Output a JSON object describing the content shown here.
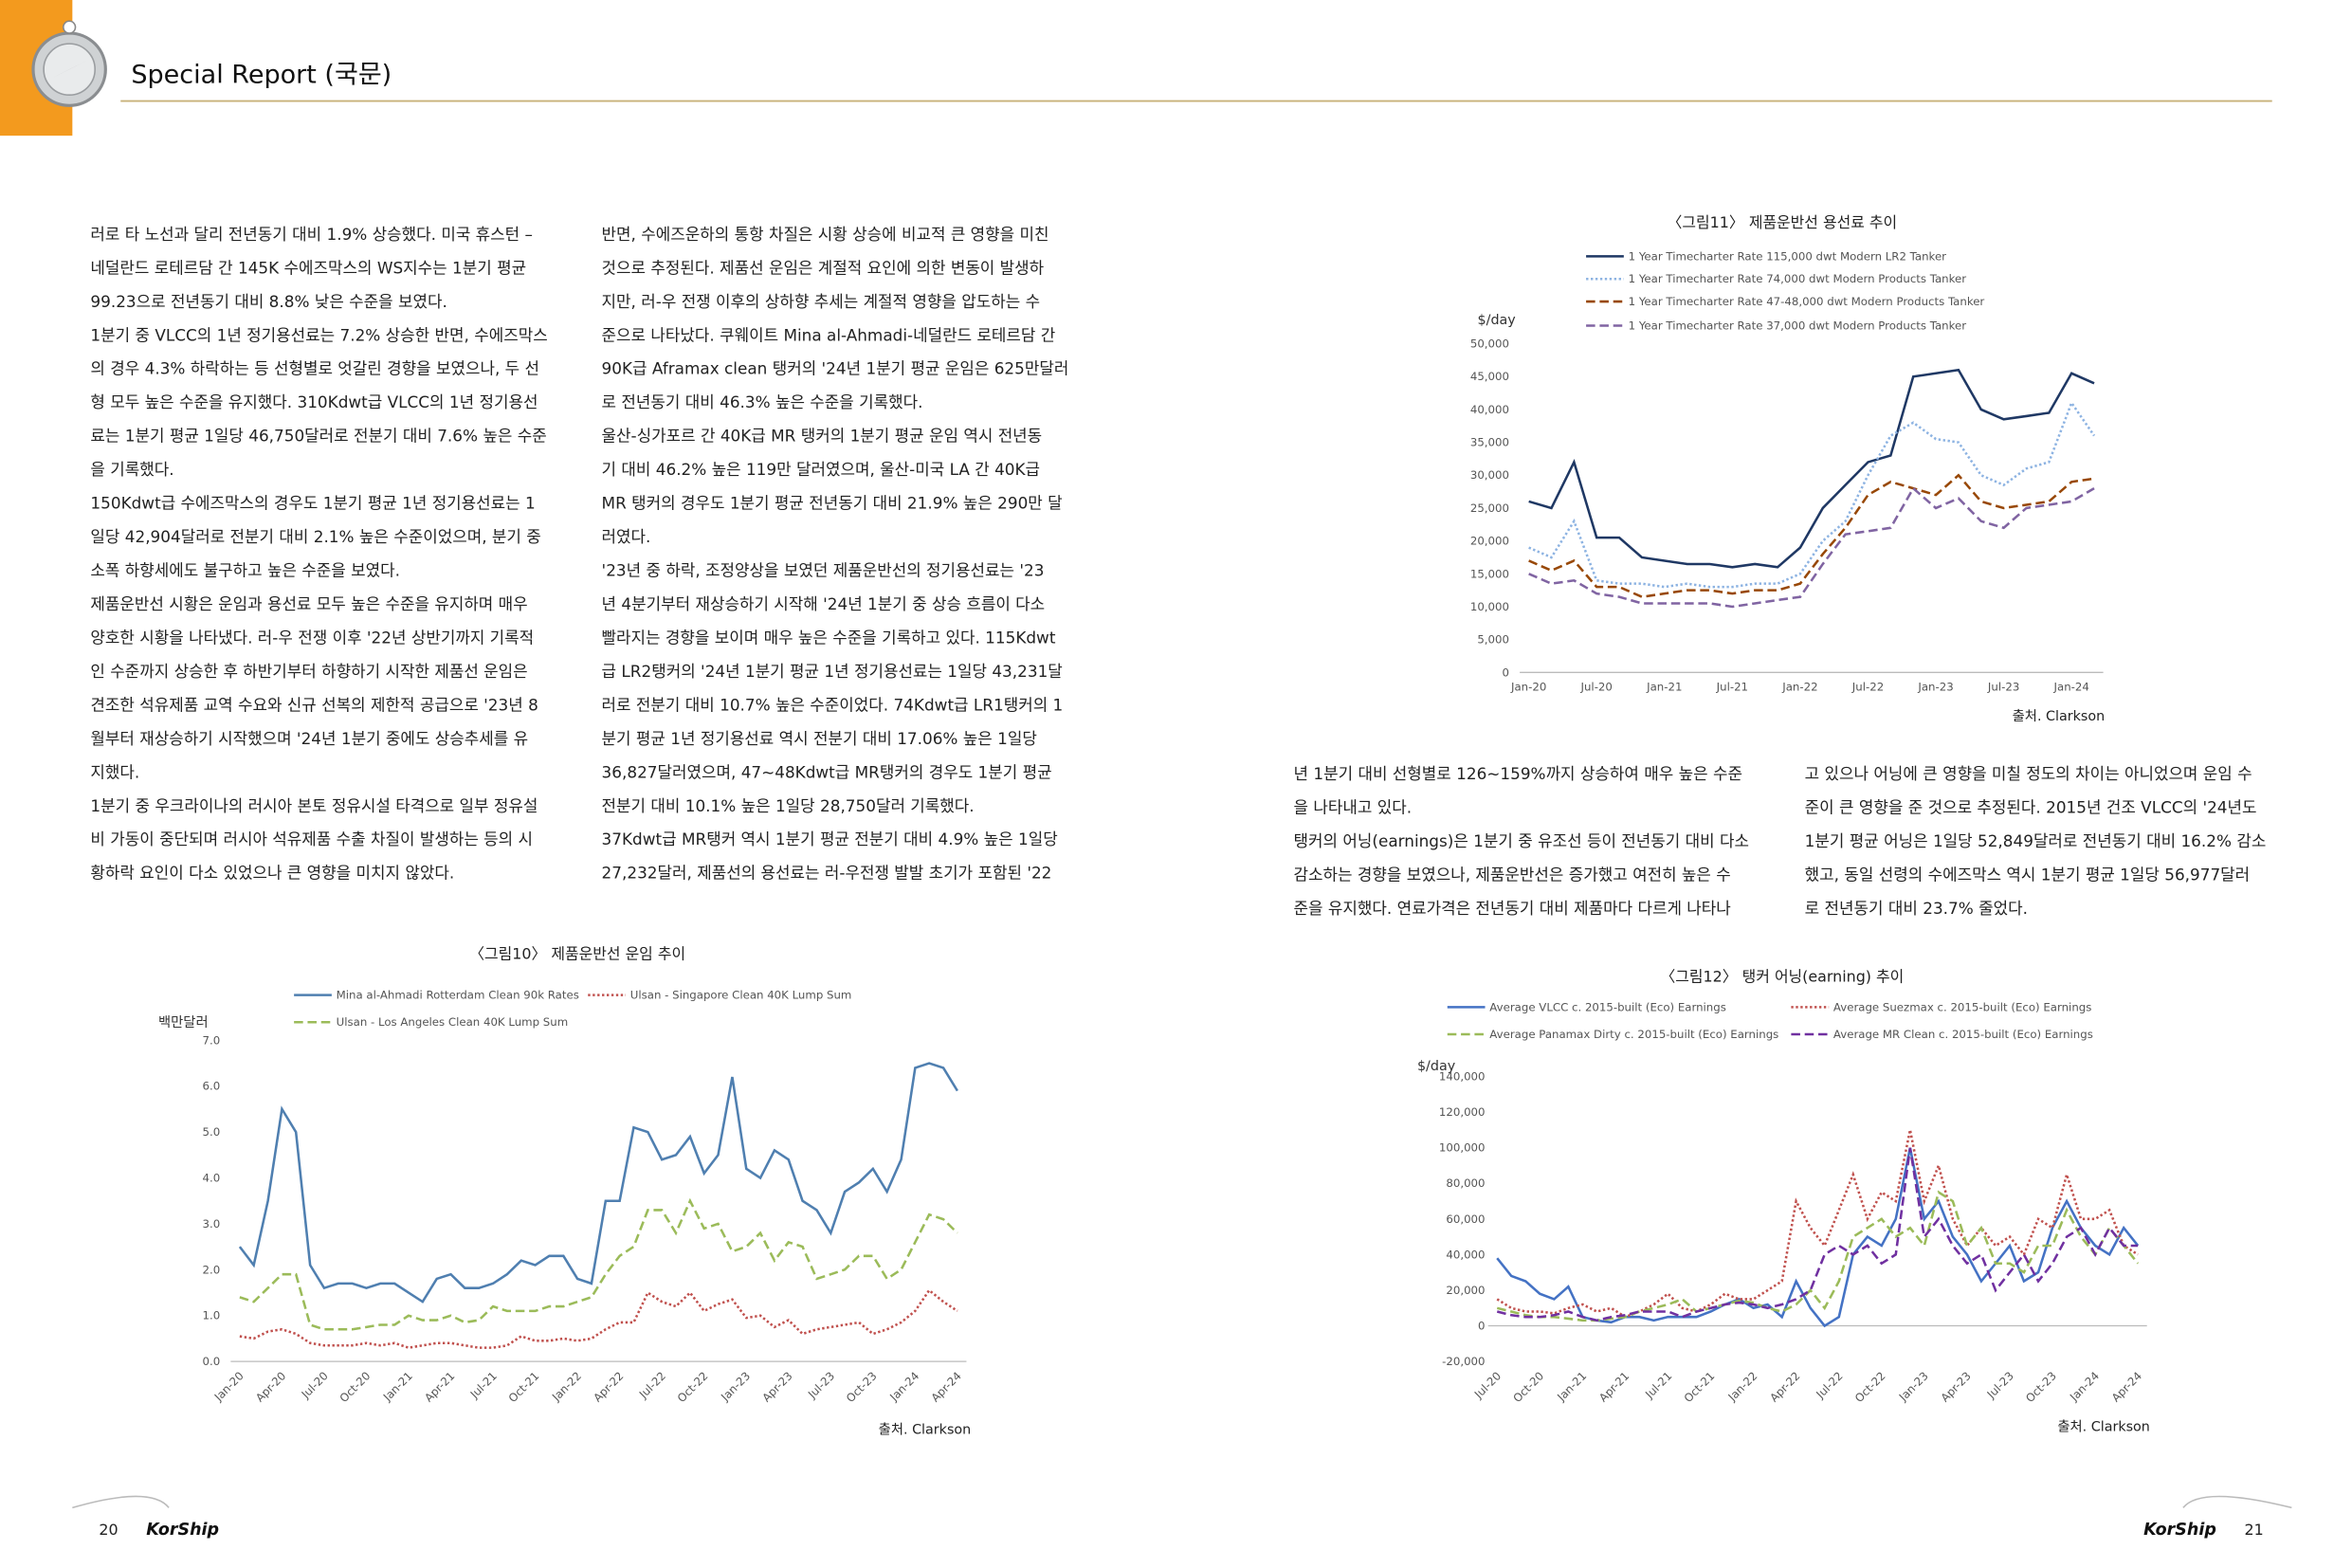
{
  "header": {
    "title": "Special Report (국문)"
  },
  "columns": [
    [
      "러로 타 노선과 달리 전년동기 대비 1.9% 상승했다. 미국 휴스턴 –",
      "네덜란드 로테르담 간 145K 수에즈막스의 WS지수는 1분기 평균",
      "99.23으로 전년동기 대비 8.8% 낮은 수준을 보였다.",
      "1분기 중 VLCC의 1년 정기용선료는 7.2% 상승한 반면, 수에즈막스",
      "의 경우 4.3% 하락하는 등 선형별로 엇갈린 경향을 보였으나, 두 선",
      "형 모두 높은 수준을 유지했다. 310Kdwt급 VLCC의 1년 정기용선",
      "료는 1분기 평균 1일당 46,750달러로 전분기 대비 7.6% 높은 수준",
      "을 기록했다.",
      "150Kdwt급 수에즈막스의 경우도 1분기 평균 1년 정기용선료는 1",
      "일당 42,904달러로 전분기 대비 2.1% 높은 수준이었으며, 분기 중",
      "소폭 하향세에도 불구하고 높은 수준을 보였다.",
      "제품운반선 시황은 운임과 용선료 모두 높은 수준을 유지하며 매우",
      "양호한 시황을 나타냈다. 러-우 전쟁 이후 '22년 상반기까지 기록적",
      "인 수준까지 상승한 후 하반기부터 하향하기 시작한 제품선 운임은",
      "견조한 석유제품 교역 수요와 신규 선복의 제한적 공급으로 '23년 8",
      "월부터 재상승하기 시작했으며 '24년 1분기 중에도 상승추세를 유",
      "지했다.",
      "1분기 중 우크라이나의 러시아 본토 정유시설 타격으로 일부 정유설",
      "비 가동이 중단되며 러시아 석유제품 수출 차질이 발생하는 등의 시",
      "황하락 요인이 다소 있었으나 큰 영향을 미치지 않았다."
    ],
    [
      "반면, 수에즈운하의 통항 차질은 시황 상승에 비교적 큰 영향을 미친",
      "것으로 추정된다. 제품선 운임은 계절적 요인에 의한 변동이 발생하",
      "지만, 러-우 전쟁 이후의 상하향 추세는 계절적 영향을 압도하는 수",
      "준으로 나타났다. 쿠웨이트 Mina al-Ahmadi-네덜란드 로테르담 간",
      "90K급 Aframax clean 탱커의 '24년 1분기 평균 운임은 625만달러",
      "로 전년동기 대비 46.3% 높은 수준을 기록했다.",
      "울산-싱가포르 간 40K급 MR 탱커의 1분기 평균 운임 역시 전년동",
      "기 대비 46.2% 높은 119만 달러였으며, 울산-미국 LA 간 40K급",
      "MR 탱커의 경우도 1분기 평균 전년동기 대비 21.9% 높은 290만 달",
      "러였다.",
      "'23년 중 하락, 조정양상을 보였던 제품운반선의 정기용선료는 '23",
      "년 4분기부터 재상승하기 시작해 '24년 1분기 중 상승 흐름이 다소",
      "빨라지는 경향을 보이며 매우 높은 수준을 기록하고 있다. 115Kdwt",
      "급 LR2탱커의 '24년 1분기 평균 1년 정기용선료는 1일당 43,231달",
      "러로 전분기 대비 10.7% 높은 수준이었다. 74Kdwt급 LR1탱커의 1",
      "분기 평균 1년 정기용선료 역시 전분기 대비 17.06% 높은 1일당",
      "36,827달러였으며, 47~48Kdwt급 MR탱커의 경우도 1분기 평균",
      "전분기 대비 10.1% 높은 1일당 28,750달러 기록했다.",
      "37Kdwt급 MR탱커 역시 1분기 평균 전분기 대비 4.9% 높은 1일당",
      "27,232달러, 제품선의 용선료는 러-우전쟁 발발 초기가 포함된 '22"
    ],
    [
      "년 1분기 대비 선형별로 126~159%까지 상승하여 매우 높은 수준",
      "을 나타내고 있다.",
      "탱커의 어닝(earnings)은 1분기 중 유조선 등이 전년동기 대비 다소",
      "감소하는 경향을 보였으나, 제품운반선은 증가했고 여전히 높은 수",
      "준을 유지했다. 연료가격은 전년동기 대비 제품마다 다르게 나타나"
    ],
    [
      "고 있으나 어닝에 큰 영향을 미칠 정도의 차이는 아니었으며 운임 수",
      "준이 큰 영향을 준 것으로 추정된다. 2015년 건조 VLCC의 '24년도",
      "1분기 평균 어닝은 1일당 52,849달러로 전년동기 대비 16.2% 감소",
      "했고, 동일 선령의 수에즈막스 역시 1분기 평균 1일당 56,977달러",
      "로 전년동기 대비 23.7% 줄었다."
    ]
  ],
  "figures": [
    {
      "type": "line",
      "title": "〈그림10〉 제품운반선 운임 추이",
      "y_label": "백만달러",
      "source": "출처. Clarkson",
      "categories": [
        "Jan-20",
        null,
        null,
        "Apr-20",
        null,
        null,
        "Jul-20",
        null,
        null,
        "Oct-20",
        null,
        null,
        "Jan-21",
        null,
        null,
        "Apr-21",
        null,
        null,
        "Jul-21",
        null,
        null,
        "Oct-21",
        null,
        null,
        "Jan-22",
        null,
        null,
        "Apr-22",
        null,
        null,
        "Jul-22",
        null,
        null,
        "Oct-22",
        null,
        null,
        "Jan-23",
        null,
        null,
        "Apr-23",
        null,
        null,
        "Jul-23",
        null,
        null,
        "Oct-23",
        null,
        null,
        "Jan-24",
        null,
        null,
        "Apr-24"
      ],
      "ylim": [
        0,
        7
      ],
      "yticks": [
        {
          "value": 0,
          "label": "0.0"
        },
        {
          "value": 1,
          "label": "1.0"
        },
        {
          "value": 2,
          "label": "2.0"
        },
        {
          "value": 3,
          "label": "3.0"
        },
        {
          "value": 4,
          "label": "4.0"
        },
        {
          "value": 5,
          "label": "5.0"
        },
        {
          "value": 6,
          "label": "6.0"
        },
        {
          "value": 7,
          "label": "7.0"
        }
      ],
      "series": [
        {
          "name": "Mina al-Ahmadi Rotterdam Clean 90k Rates",
          "color": "#4f7fb0",
          "style": "solid",
          "values": [
            2.5,
            2.1,
            3.5,
            5.5,
            5.0,
            2.1,
            1.6,
            1.7,
            1.7,
            1.6,
            1.7,
            1.7,
            1.5,
            1.3,
            1.8,
            1.9,
            1.6,
            1.6,
            1.7,
            1.9,
            2.2,
            2.1,
            2.3,
            2.3,
            1.8,
            1.7,
            3.5,
            3.5,
            5.1,
            5.0,
            4.4,
            4.5,
            4.9,
            4.1,
            4.5,
            6.2,
            4.2,
            4.0,
            4.6,
            4.4,
            3.5,
            3.3,
            2.8,
            3.7,
            3.9,
            4.2,
            3.7,
            4.4,
            6.4,
            6.5,
            6.4,
            5.9
          ]
        },
        {
          "name": "Ulsan - Singapore Clean 40K Lump Sum",
          "color": "#c0504d",
          "style": "dotted",
          "values": [
            0.55,
            0.5,
            0.65,
            0.7,
            0.6,
            0.4,
            0.35,
            0.35,
            0.35,
            0.4,
            0.35,
            0.4,
            0.3,
            0.35,
            0.4,
            0.4,
            0.35,
            0.3,
            0.3,
            0.35,
            0.55,
            0.45,
            0.45,
            0.5,
            0.45,
            0.5,
            0.7,
            0.85,
            0.85,
            1.5,
            1.3,
            1.2,
            1.5,
            1.1,
            1.25,
            1.35,
            0.95,
            1.0,
            0.75,
            0.9,
            0.6,
            0.7,
            0.75,
            0.8,
            0.85,
            0.6,
            0.7,
            0.85,
            1.1,
            1.55,
            1.3,
            1.1
          ]
        },
        {
          "name": "Ulsan - Los Angeles Clean 40K Lump Sum",
          "color": "#9bbb59",
          "style": "dashed",
          "values": [
            1.4,
            1.3,
            1.6,
            1.9,
            1.9,
            0.8,
            0.7,
            0.7,
            0.7,
            0.75,
            0.8,
            0.8,
            1.0,
            0.9,
            0.9,
            1.0,
            0.85,
            0.9,
            1.2,
            1.1,
            1.1,
            1.1,
            1.2,
            1.2,
            1.3,
            1.4,
            1.9,
            2.3,
            2.5,
            3.3,
            3.3,
            2.8,
            3.5,
            2.9,
            3.0,
            2.4,
            2.5,
            2.8,
            2.2,
            2.6,
            2.5,
            1.8,
            1.9,
            2.0,
            2.3,
            2.3,
            1.8,
            2.0,
            2.6,
            3.2,
            3.1,
            2.8
          ]
        }
      ]
    },
    {
      "type": "line",
      "title": "〈그림11〉 제품운반선 용선료 추이",
      "y_label": "$/day",
      "source": "출처. Clarkson",
      "categories": [
        "Jan-20",
        null,
        null,
        "Jul-20",
        null,
        null,
        "Jan-21",
        null,
        null,
        "Jul-21",
        null,
        null,
        "Jan-22",
        null,
        null,
        "Jul-22",
        null,
        null,
        "Jan-23",
        null,
        null,
        "Jul-23",
        null,
        null,
        "Jan-24",
        null
      ],
      "ylim": [
        0,
        50000
      ],
      "yticks": [
        0,
        {
          "value": 5000,
          "label": "5,000"
        },
        {
          "value": 10000,
          "label": "10,000"
        },
        {
          "value": 15000,
          "label": "15,000"
        },
        {
          "value": 20000,
          "label": "20,000"
        },
        {
          "value": 25000,
          "label": "25,000"
        },
        {
          "value": 30000,
          "label": "30,000"
        },
        {
          "value": 35000,
          "label": "35,000"
        },
        {
          "value": 40000,
          "label": "40,000"
        },
        {
          "value": 45000,
          "label": "45,000"
        },
        {
          "value": 50000,
          "label": "50,000"
        }
      ],
      "series": [
        {
          "name": "1 Year Timecharter Rate 115,000 dwt Modern LR2 Tanker",
          "color": "#1f3864",
          "style": "solid",
          "values": [
            26000,
            25000,
            32000,
            20500,
            20500,
            17500,
            17000,
            16500,
            16500,
            16000,
            16500,
            16000,
            19000,
            25000,
            28500,
            32000,
            33000,
            45000,
            45500,
            46000,
            40000,
            38500,
            39000,
            39500,
            45500,
            44000
          ]
        },
        {
          "name": "1 Year Timecharter Rate 74,000 dwt Modern Products Tanker",
          "color": "#8db3e2",
          "style": "dotted",
          "values": [
            19000,
            17500,
            23000,
            14000,
            13500,
            13500,
            13000,
            13500,
            13000,
            13000,
            13500,
            13500,
            15000,
            20000,
            23000,
            30000,
            36000,
            38000,
            35500,
            35000,
            30000,
            28500,
            31000,
            32000,
            41000,
            36000
          ]
        },
        {
          "name": "1 Year Timecharter Rate 47-48,000 dwt Modern Products Tanker",
          "color": "#984807",
          "style": "dashed",
          "values": [
            17000,
            15500,
            17000,
            13000,
            13000,
            11500,
            12000,
            12500,
            12500,
            12000,
            12500,
            12500,
            13500,
            18000,
            22000,
            27000,
            29000,
            28000,
            27000,
            30000,
            26000,
            25000,
            25500,
            26000,
            29000,
            29500
          ]
        },
        {
          "name": "1 Year Timecharter Rate 37,000 dwt Modern Products Tanker",
          "color": "#8064a2",
          "style": "dashed",
          "values": [
            15000,
            13500,
            14000,
            12000,
            11500,
            10500,
            10500,
            10500,
            10500,
            10000,
            10500,
            11000,
            11500,
            16500,
            21000,
            21500,
            22000,
            28000,
            25000,
            26500,
            23000,
            22000,
            25000,
            25500,
            26000,
            28000
          ]
        }
      ]
    },
    {
      "type": "line",
      "title": "〈그림12〉 탱커 어닝(earning) 추이",
      "y_label": "$/day",
      "source": "출처. Clarkson",
      "categories": [
        "Jul-20",
        null,
        null,
        "Oct-20",
        null,
        null,
        "Jan-21",
        null,
        null,
        "Apr-21",
        null,
        null,
        "Jul-21",
        null,
        null,
        "Oct-21",
        null,
        null,
        "Jan-22",
        null,
        null,
        "Apr-22",
        null,
        null,
        "Jul-22",
        null,
        null,
        "Oct-22",
        null,
        null,
        "Jan-23",
        null,
        null,
        "Apr-23",
        null,
        null,
        "Jul-23",
        null,
        null,
        "Oct-23",
        null,
        null,
        "Jan-24",
        null,
        null,
        "Apr-24"
      ],
      "ylim": [
        -20000,
        140000
      ],
      "yticks": [
        {
          "value": -20000,
          "label": "-20,000"
        },
        0,
        {
          "value": 20000,
          "label": "20,000"
        },
        {
          "value": 40000,
          "label": "40,000"
        },
        {
          "value": 60000,
          "label": "60,000"
        },
        {
          "value": 80000,
          "label": "80,000"
        },
        {
          "value": 100000,
          "label": "100,000"
        },
        {
          "value": 120000,
          "label": "120,000"
        },
        {
          "value": 140000,
          "label": "140,000"
        }
      ],
      "series": [
        {
          "name": "Average VLCC c. 2015-built (Eco) Earnings",
          "color": "#4472c4",
          "style": "solid",
          "values": [
            38000,
            28000,
            25000,
            18000,
            15000,
            22000,
            5000,
            3000,
            2000,
            5000,
            5000,
            3000,
            5000,
            5000,
            5000,
            8000,
            12000,
            15000,
            10000,
            12000,
            5000,
            25000,
            10000,
            0,
            5000,
            40000,
            50000,
            45000,
            60000,
            100000,
            60000,
            70000,
            50000,
            40000,
            25000,
            35000,
            45000,
            25000,
            30000,
            55000,
            70000,
            55000,
            45000,
            40000,
            55000,
            45000
          ]
        },
        {
          "name": "Average Suezmax c. 2015-built (Eco) Earnings",
          "color": "#c0504d",
          "style": "dotted",
          "values": [
            15000,
            10000,
            8000,
            8000,
            7000,
            10000,
            12000,
            8000,
            10000,
            5000,
            8000,
            12000,
            18000,
            10000,
            8000,
            12000,
            18000,
            15000,
            15000,
            20000,
            25000,
            70000,
            55000,
            45000,
            65000,
            85000,
            60000,
            75000,
            70000,
            110000,
            70000,
            90000,
            60000,
            45000,
            55000,
            45000,
            50000,
            40000,
            60000,
            55000,
            85000,
            60000,
            60000,
            65000,
            45000,
            40000
          ]
        },
        {
          "name": "Average Panamax Dirty c. 2015-built (Eco) Earnings",
          "color": "#9bbb59",
          "style": "dashed",
          "values": [
            10000,
            8000,
            6000,
            5000,
            5000,
            4000,
            3000,
            3000,
            4000,
            5000,
            8000,
            10000,
            12000,
            15000,
            8000,
            10000,
            12000,
            14000,
            13000,
            10000,
            8000,
            12000,
            20000,
            10000,
            25000,
            50000,
            55000,
            60000,
            50000,
            55000,
            45000,
            75000,
            70000,
            45000,
            55000,
            35000,
            35000,
            30000,
            45000,
            45000,
            65000,
            50000,
            40000,
            55000,
            45000,
            35000
          ]
        },
        {
          "name": "Average MR Clean c. 2015-built (Eco) Earnings",
          "color": "#7030a0",
          "style": "dashed",
          "values": [
            8000,
            6000,
            5000,
            5000,
            6000,
            8000,
            5000,
            3000,
            5000,
            6000,
            8000,
            8000,
            8000,
            5000,
            8000,
            10000,
            12000,
            13000,
            12000,
            10000,
            12000,
            15000,
            20000,
            40000,
            45000,
            40000,
            45000,
            35000,
            40000,
            100000,
            50000,
            60000,
            45000,
            35000,
            40000,
            20000,
            30000,
            40000,
            25000,
            35000,
            50000,
            55000,
            40000,
            55000,
            45000,
            45000
          ]
        }
      ]
    }
  ],
  "footer": {
    "left_page": "20",
    "right_page": "21",
    "logo": "KorShip"
  }
}
